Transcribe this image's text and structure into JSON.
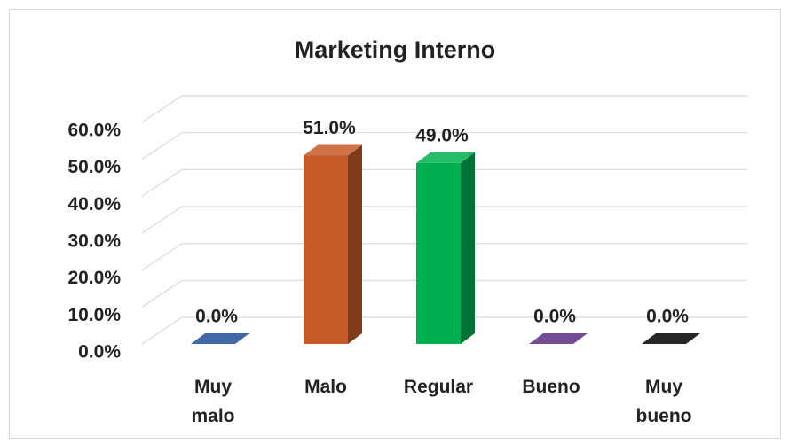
{
  "chart_data": {
    "type": "bar3d",
    "title": "Marketing Interno",
    "categories": [
      "Muy malo",
      "Malo",
      "Regular",
      "Bueno",
      "Muy bueno"
    ],
    "values": [
      0,
      51,
      49,
      0,
      0
    ],
    "value_labels": [
      "0.0%",
      "51.0%",
      "49.0%",
      "0.0%",
      "0.0%"
    ],
    "colors": [
      "#1f4e99",
      "#c55a28",
      "#00b050",
      "#5b2c83",
      "#000000"
    ],
    "ylim": [
      0,
      60
    ],
    "yticks": [
      {
        "value": 0,
        "label": "0.0%"
      },
      {
        "value": 10,
        "label": "10.0%"
      },
      {
        "value": 20,
        "label": "20.0%"
      },
      {
        "value": 30,
        "label": "30.0%"
      },
      {
        "value": 40,
        "label": "40.0%"
      },
      {
        "value": 50,
        "label": "50.0%"
      },
      {
        "value": 60,
        "label": "60.0%"
      }
    ],
    "grid": true
  }
}
